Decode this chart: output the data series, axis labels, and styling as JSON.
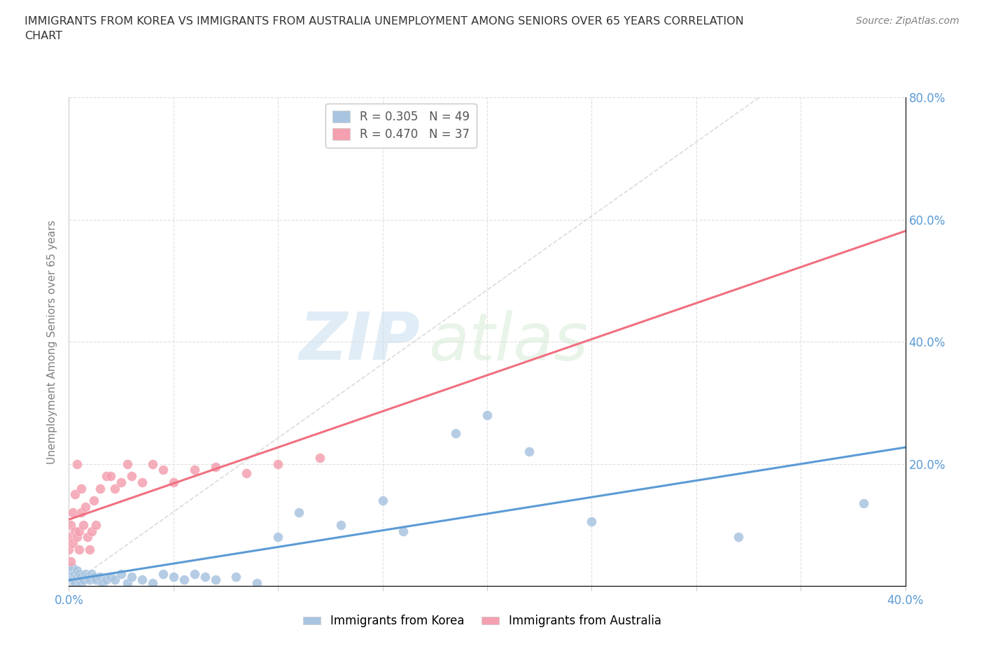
{
  "title": "IMMIGRANTS FROM KOREA VS IMMIGRANTS FROM AUSTRALIA UNEMPLOYMENT AMONG SENIORS OVER 65 YEARS CORRELATION\nCHART",
  "source_text": "Source: ZipAtlas.com",
  "ylabel": "Unemployment Among Seniors over 65 years",
  "xlim": [
    0.0,
    0.4
  ],
  "ylim": [
    0.0,
    0.8
  ],
  "korea_R": 0.305,
  "korea_N": 49,
  "australia_R": 0.47,
  "australia_N": 37,
  "korea_color": "#a8c4e0",
  "australia_color": "#f4a0b0",
  "korea_line_color": "#5b9bd5",
  "australia_line_color": "#f07080",
  "legend_korea_label": "Immigrants from Korea",
  "legend_australia_label": "Immigrants from Australia",
  "watermark_zip": "ZIP",
  "watermark_atlas": "atlas",
  "korea_x": [
    0.0,
    0.001,
    0.001,
    0.002,
    0.002,
    0.003,
    0.003,
    0.004,
    0.004,
    0.005,
    0.005,
    0.006,
    0.006,
    0.007,
    0.008,
    0.009,
    0.01,
    0.011,
    0.012,
    0.013,
    0.015,
    0.016,
    0.018,
    0.02,
    0.022,
    0.025,
    0.028,
    0.03,
    0.035,
    0.04,
    0.045,
    0.05,
    0.055,
    0.06,
    0.065,
    0.07,
    0.08,
    0.09,
    0.1,
    0.11,
    0.13,
    0.15,
    0.16,
    0.185,
    0.2,
    0.22,
    0.25,
    0.32,
    0.38
  ],
  "korea_y": [
    0.02,
    0.015,
    0.025,
    0.01,
    0.03,
    0.005,
    0.02,
    0.015,
    0.025,
    0.01,
    0.02,
    0.005,
    0.015,
    0.01,
    0.02,
    0.015,
    0.01,
    0.02,
    0.015,
    0.01,
    0.015,
    0.005,
    0.01,
    0.015,
    0.01,
    0.02,
    0.005,
    0.015,
    0.01,
    0.005,
    0.02,
    0.015,
    0.01,
    0.02,
    0.015,
    0.01,
    0.015,
    0.005,
    0.08,
    0.12,
    0.1,
    0.14,
    0.09,
    0.25,
    0.28,
    0.22,
    0.105,
    0.08,
    0.135
  ],
  "australia_x": [
    0.0,
    0.0,
    0.001,
    0.001,
    0.002,
    0.002,
    0.003,
    0.003,
    0.004,
    0.004,
    0.005,
    0.005,
    0.006,
    0.006,
    0.007,
    0.008,
    0.009,
    0.01,
    0.011,
    0.012,
    0.013,
    0.015,
    0.018,
    0.02,
    0.022,
    0.025,
    0.028,
    0.03,
    0.035,
    0.04,
    0.045,
    0.05,
    0.06,
    0.07,
    0.085,
    0.1,
    0.12
  ],
  "australia_y": [
    0.06,
    0.08,
    0.04,
    0.1,
    0.07,
    0.12,
    0.09,
    0.15,
    0.08,
    0.2,
    0.06,
    0.09,
    0.12,
    0.16,
    0.1,
    0.13,
    0.08,
    0.06,
    0.09,
    0.14,
    0.1,
    0.16,
    0.18,
    0.18,
    0.16,
    0.17,
    0.2,
    0.18,
    0.17,
    0.2,
    0.19,
    0.17,
    0.19,
    0.195,
    0.185,
    0.2,
    0.21
  ]
}
